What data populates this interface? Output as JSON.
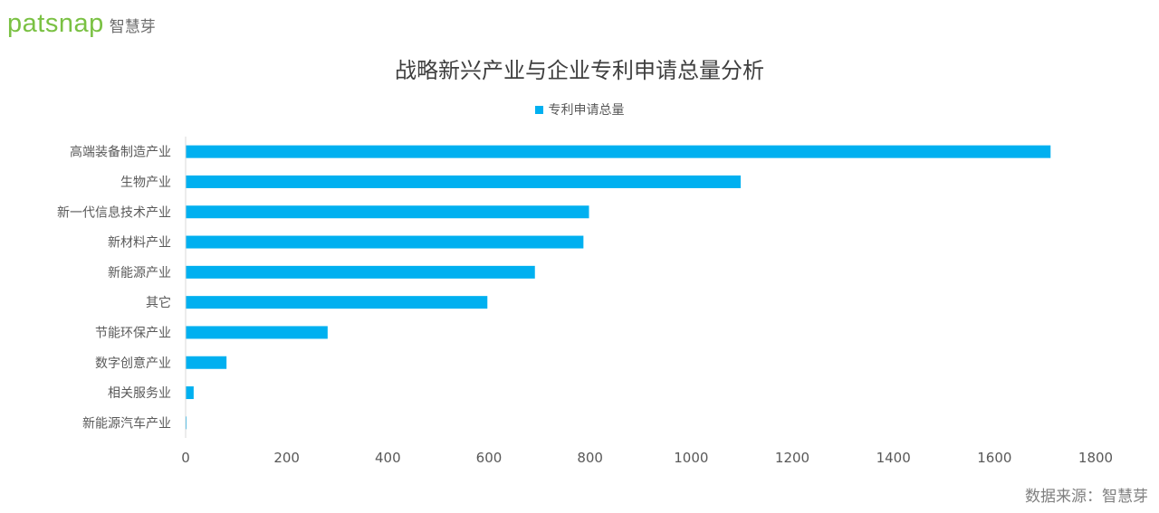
{
  "logo": {
    "word": "patsnap",
    "cn": "智慧芽"
  },
  "source": "数据来源：智慧芽",
  "colors": {
    "bar": "#00b0f0",
    "logo": "#7ac143",
    "axis": "#d9d9d9"
  },
  "chart_data": {
    "type": "bar",
    "orientation": "horizontal",
    "title": "战略新兴产业与企业专利申请总量分析",
    "xlabel": "",
    "ylabel": "",
    "xlim": [
      0,
      1800
    ],
    "xticks": [
      0,
      200,
      400,
      600,
      800,
      1000,
      1200,
      1400,
      1600,
      1800
    ],
    "grid": false,
    "legend_position": "top-center",
    "categories": [
      "高端装备制造产业",
      "生物产业",
      "新一代信息技术产业",
      "新材料产业",
      "新能源产业",
      "其它",
      "节能环保产业",
      "数字创意产业",
      "相关服务业",
      "新能源汽车产业"
    ],
    "series": [
      {
        "name": "专利申请总量",
        "values": [
          1710,
          1097,
          797,
          786,
          690,
          596,
          280,
          80,
          15,
          1
        ]
      }
    ]
  }
}
